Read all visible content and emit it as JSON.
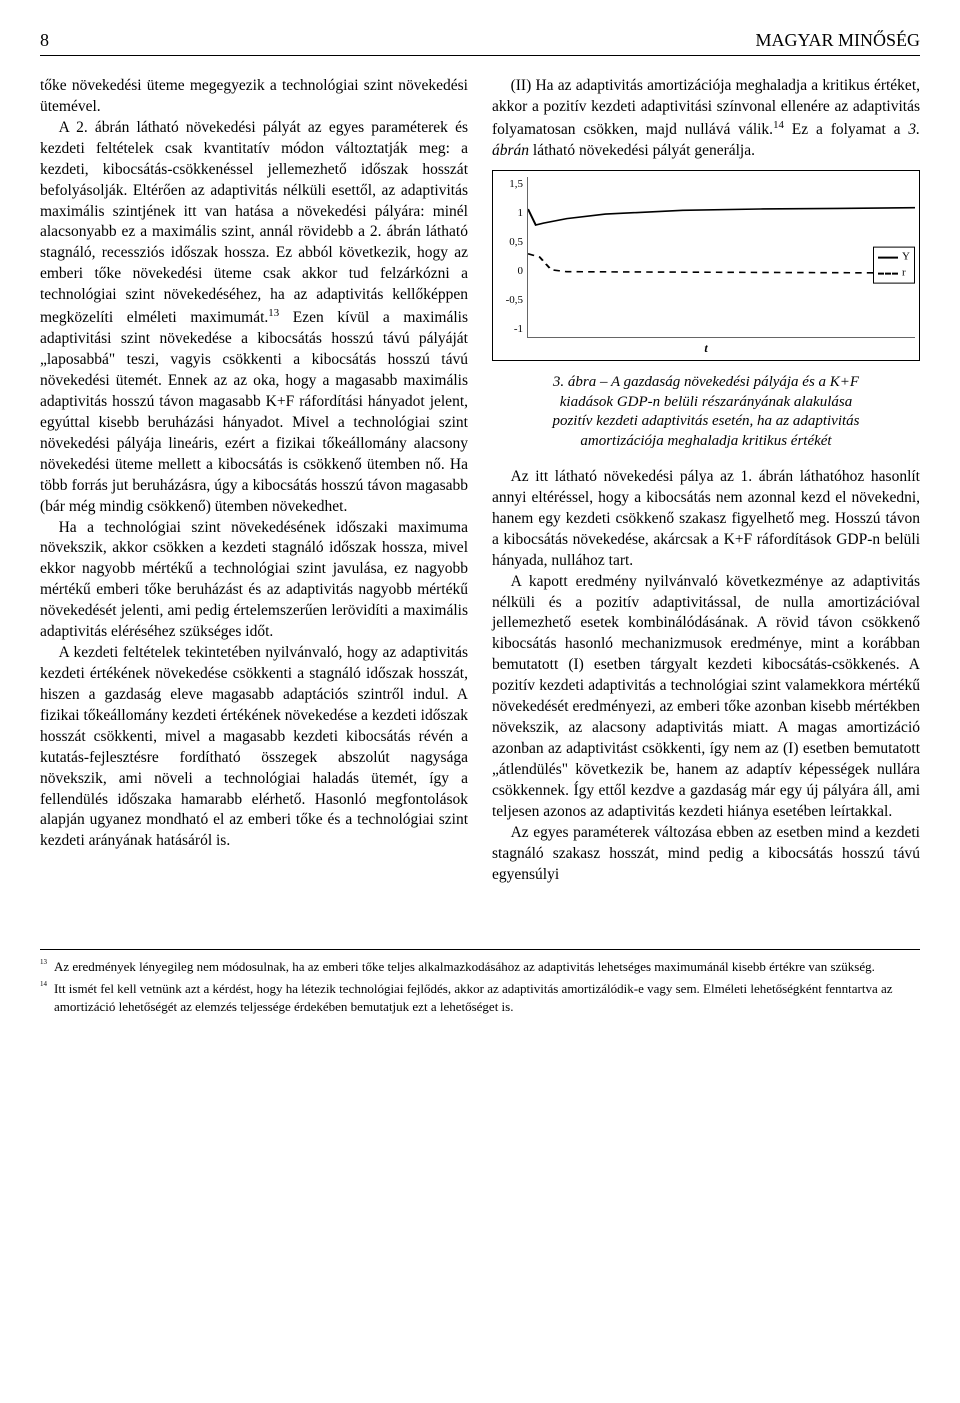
{
  "header": {
    "page_number": "8",
    "journal_title": "MAGYAR MINŐSÉG"
  },
  "left_column": {
    "p1": "tőke növekedési üteme megegyezik a technológiai szint növekedési ütemével.",
    "p2_a": "A 2. ábrán látható növekedési pályát az egyes paraméterek és kezdeti feltételek csak kvantitatív módon változtatják meg: a kezdeti, kibocsátás-csökkenéssel jellemezhető időszak hosszát befolyásolják. Eltérően az adaptivitás nélküli esettől, az adaptivitás maximális szintjének itt van hatása a növekedési pályára: minél alacsonyabb ez a maximális szint, annál rövidebb a 2. ábrán látható stagnáló, recessziós időszak hossza. Ez abból következik, hogy az emberi tőke növekedési üteme csak akkor tud felzárkózni a technológiai szint növekedéséhez, ha az adaptivitás kellőképpen megközelíti elméleti maximumát.",
    "p2_sup": "13",
    "p2_b": " Ezen kívül a maximális adaptivitási szint növekedése a kibocsátás hosszú távú pályáját „laposabbá\" teszi, vagyis csökkenti a kibocsátás hosszú távú növekedési ütemét. Ennek az az oka, hogy a magasabb maximális adaptivitás hosszú távon magasabb K+F ráfordítási hányadot jelent, egyúttal kisebb beruházási hányadot. Mivel a technológiai szint növekedési pályája lineáris, ezért a fizikai tőkeállomány alacsony növekedési üteme mellett a kibocsátás is csökkenő ütemben nő. Ha több forrás jut beruházásra, úgy a kibocsátás hosszú távon magasabb (bár még mindig csökkenő) ütemben növekedhet.",
    "p3": "Ha a technológiai szint növekedésének időszaki maximuma növekszik, akkor csökken a kezdeti stagnáló időszak hossza, mivel ekkor nagyobb mértékű a technológiai szint javulása, ez nagyobb mértékű emberi tőke beruházást és az adaptivitás nagyobb mértékű növekedését jelenti, ami pedig értelemszerűen lerövidíti a maximális adaptivitás eléréséhez szükséges időt.",
    "p4": "A kezdeti feltételek tekintetében nyilvánvaló, hogy az adaptivitás kezdeti értékének növekedése csökkenti a stagnáló időszak hosszát, hiszen a gazdaság eleve magasabb adaptációs szintről indul. A fizikai tőkeállomány kezdeti értékének növekedése a kezdeti időszak hosszát csökkenti, mivel a magasabb kezdeti kibocsátás révén a kutatás-fejlesztésre fordítható összegek abszolút nagysága növekszik, ami növeli a technológiai haladás ütemét, így a fellendülés időszaka hamarabb elérhető. Hasonló megfontolások alapján ugyanez mondható el az emberi tőke és a technológiai szint kezdeti arányának hatásáról is."
  },
  "right_column": {
    "p1_a": "(II) Ha az adaptivitás amortizációja meghaladja a kritikus értéket, akkor a pozitív kezdeti adaptivitási színvonal ellenére az adaptivitás folyamatosan csökken, majd nullává válik.",
    "p1_sup": "14",
    "p1_b": " Ez a folyamat a ",
    "p1_c": "3. ábrán",
    "p1_d": " látható növekedési pályát generálja.",
    "p2": "Az itt látható növekedési pálya az 1. ábrán láthatóhoz hasonlít annyi eltéréssel, hogy a kibocsátás nem azonnal kezd el növekedni, hanem egy kezdeti csökkenő szakasz figyelhető meg. Hosszú távon a kibocsátás növekedése, akárcsak a K+F ráfordítások GDP-n belüli hányada, nullához tart.",
    "p3": "A kapott eredmény nyilvánvaló következménye az adaptivitás nélküli és a pozitív adaptivitással, de nulla amortizációval jellemezhető esetek kombinálódásának. A rövid távon csökkenő kibocsátás hasonló mechanizmusok eredménye, mint a korábban bemutatott (I) esetben tárgyalt kezdeti kibocsátás-csökkenés. A pozitív kezdeti adaptivitás a technológiai szint valamekkora mértékű növekedését eredményezi, az emberi tőke azonban kisebb mértékben növekszik, az alacsony adaptivitás miatt. A magas amortizáció azonban az adaptivitást csökkenti, így nem az (I) esetben bemutatott „átlendülés\" következik be, hanem az adaptív képességek nullára csökkennek. Így ettől kezdve a gazdaság már egy új pályára áll, ami teljesen azonos az adaptivitás kezdeti hiánya esetében leírtakkal.",
    "p4": "Az egyes paraméterek változása ebben az esetben mind a kezdeti stagnáló szakasz hosszát, mind pedig a kibocsátás hosszú távú egyensúlyi"
  },
  "chart": {
    "y_ticks": [
      "1,5",
      "1",
      "0,5",
      "0",
      "-0,5",
      "-1"
    ],
    "x_label": "t",
    "legend": {
      "series1": "Y",
      "series2": "r"
    },
    "series_Y": {
      "type": "line",
      "style": "solid",
      "color": "#000000",
      "points": [
        [
          0,
          1.0
        ],
        [
          2,
          0.75
        ],
        [
          4,
          0.78
        ],
        [
          10,
          0.85
        ],
        [
          20,
          0.92
        ],
        [
          40,
          0.98
        ],
        [
          60,
          1.0
        ],
        [
          80,
          1.01
        ],
        [
          100,
          1.02
        ]
      ]
    },
    "series_r": {
      "type": "line",
      "style": "dashed",
      "color": "#000000",
      "points": [
        [
          0,
          0.3
        ],
        [
          3,
          0.25
        ],
        [
          6,
          0.05
        ],
        [
          10,
          0.02
        ],
        [
          100,
          0.0
        ]
      ]
    },
    "ylim": [
      -1,
      1.5
    ],
    "background": "#ffffff"
  },
  "caption": {
    "line1": "3. ábra – A gazdaság növekedési pályája és a K+F",
    "line2": "kiadások GDP-n belüli részarányának alakulása",
    "line3": "pozitív kezdeti adaptivitás esetén, ha az adaptivitás",
    "line4": "amortizációja meghaladja kritikus értékét"
  },
  "footnotes": {
    "f13_num": "13",
    "f13": "Az eredmények lényegileg nem módosulnak, ha az emberi tőke teljes alkalmazkodásához az adaptivitás lehetséges maximumánál kisebb értékre van szükség.",
    "f14_num": "14",
    "f14": "Itt ismét fel kell vetnünk azt a kérdést, hogy ha létezik technológiai fejlődés, akkor az adaptivitás amortizálódik-e vagy sem. Elméleti lehetőségként fenntartva az amortizáció lehetőségét az elemzés teljessége érdekében bemutatjuk ezt a lehetőséget is."
  }
}
